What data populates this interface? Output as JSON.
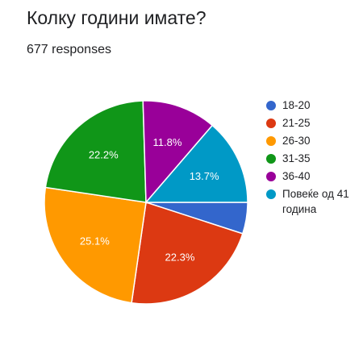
{
  "header": {
    "title": "Колку години имате?",
    "responses": "677 responses"
  },
  "chart_data": {
    "type": "pie",
    "categories": [
      "18-20",
      "21-25",
      "26-30",
      "31-35",
      "36-40",
      "Повеќе од 41 година"
    ],
    "values": [
      5.0,
      22.3,
      25.1,
      22.2,
      11.8,
      13.7
    ],
    "data_labels": [
      "",
      "22.3%",
      "25.1%",
      "22.2%",
      "11.8%",
      "13.7%"
    ],
    "colors": [
      "#3366cc",
      "#dc3912",
      "#ff9900",
      "#109618",
      "#990099",
      "#0099c6"
    ],
    "legend_position": "right",
    "start_angle_deg": 90,
    "direction": "clockwise"
  }
}
